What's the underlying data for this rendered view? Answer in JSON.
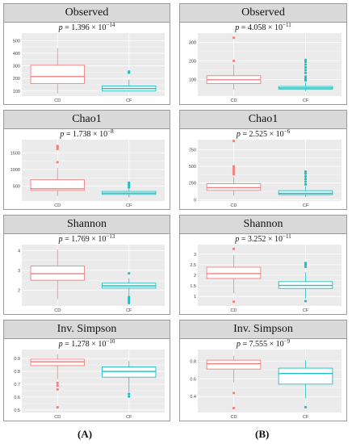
{
  "chart_data": [
    {
      "type": "box",
      "group": "A",
      "title": "Observed",
      "pvalue": {
        "base": "p = 1.396 × 10",
        "exp": "−14"
      },
      "ylim": [
        60,
        560
      ],
      "yticks": [
        100,
        200,
        300,
        400,
        500
      ],
      "categories": [
        "CD",
        "CF"
      ],
      "series": [
        {
          "name": "CD",
          "color": "#f07f7f",
          "min": 80,
          "q1": 160,
          "median": 215,
          "q3": 305,
          "max": 440,
          "outliers": []
        },
        {
          "name": "CF",
          "color": "#1fbfc4",
          "min": 95,
          "q1": 100,
          "median": 120,
          "q3": 140,
          "max": 190,
          "outliers": [
            245,
            255
          ]
        }
      ]
    },
    {
      "type": "box",
      "group": "B",
      "title": "Observed",
      "pvalue": {
        "base": "p = 4.058 × 10",
        "exp": "−11"
      },
      "ylim": [
        10,
        350
      ],
      "yticks": [
        100,
        200,
        300
      ],
      "categories": [
        "CD",
        "CF"
      ],
      "series": [
        {
          "name": "CD",
          "color": "#f07f7f",
          "min": 45,
          "q1": 78,
          "median": 98,
          "q3": 120,
          "max": 180,
          "outliers": [
            200,
            325
          ]
        },
        {
          "name": "CF",
          "color": "#1fbfc4",
          "min": 35,
          "q1": 48,
          "median": 54,
          "q3": 62,
          "max": 85,
          "outliers": [
            95,
            105,
            115,
            135,
            150,
            165,
            180,
            195,
            205
          ]
        }
      ]
    },
    {
      "type": "box",
      "group": "A",
      "title": "Chao1",
      "pvalue": {
        "base": "p = 1.738 × 10",
        "exp": "−8"
      },
      "ylim": [
        50,
        1900
      ],
      "yticks": [
        500,
        1000,
        1500
      ],
      "categories": [
        "CD",
        "CF"
      ],
      "series": [
        {
          "name": "CD",
          "color": "#f07f7f",
          "min": 200,
          "q1": 370,
          "median": 420,
          "q3": 690,
          "max": 1050,
          "outliers": [
            1220,
            1620,
            1680,
            1710
          ]
        },
        {
          "name": "CF",
          "color": "#1fbfc4",
          "min": 160,
          "q1": 250,
          "median": 290,
          "q3": 340,
          "max": 420,
          "outliers": [
            460,
            520,
            560,
            600
          ]
        }
      ]
    },
    {
      "type": "box",
      "group": "B",
      "title": "Chao1",
      "pvalue": {
        "base": "p = 2.525 × 10",
        "exp": "−6"
      },
      "ylim": [
        -20,
        900
      ],
      "yticks": [
        0,
        250,
        500,
        750
      ],
      "categories": [
        "CD",
        "CF"
      ],
      "series": [
        {
          "name": "CD",
          "color": "#f07f7f",
          "min": 60,
          "q1": 140,
          "median": 180,
          "q3": 240,
          "max": 340,
          "outliers": [
            380,
            410,
            440,
            470,
            500,
            880
          ]
        },
        {
          "name": "CF",
          "color": "#1fbfc4",
          "min": 40,
          "q1": 75,
          "median": 95,
          "q3": 135,
          "max": 200,
          "outliers": [
            230,
            270,
            310,
            350,
            390,
            420
          ]
        }
      ]
    },
    {
      "type": "box",
      "group": "A",
      "title": "Shannon",
      "pvalue": {
        "base": "p = 1.769 × 10",
        "exp": "−13"
      },
      "ylim": [
        1.2,
        4.3
      ],
      "yticks": [
        2,
        3,
        4
      ],
      "categories": [
        "CD",
        "CF"
      ],
      "series": [
        {
          "name": "CD",
          "color": "#f07f7f",
          "min": 1.55,
          "q1": 2.5,
          "median": 2.83,
          "q3": 3.22,
          "max": 4.05,
          "outliers": []
        },
        {
          "name": "CF",
          "color": "#1fbfc4",
          "min": 1.7,
          "q1": 2.1,
          "median": 2.22,
          "q3": 2.35,
          "max": 2.6,
          "outliers": [
            1.35,
            1.45,
            1.55,
            1.65,
            2.85
          ]
        }
      ]
    },
    {
      "type": "box",
      "group": "B",
      "title": "Shannon",
      "pvalue": {
        "base": "p = 3.252 × 10",
        "exp": "−11"
      },
      "ylim": [
        0.55,
        3.45
      ],
      "yticks": [
        1.0,
        1.5,
        2.0,
        2.5,
        3.0
      ],
      "categories": [
        "CD",
        "CF"
      ],
      "series": [
        {
          "name": "CD",
          "color": "#f07f7f",
          "min": 1.15,
          "q1": 1.85,
          "median": 2.08,
          "q3": 2.38,
          "max": 2.95,
          "outliers": [
            0.75,
            3.25
          ]
        },
        {
          "name": "CF",
          "color": "#1fbfc4",
          "min": 0.9,
          "q1": 1.38,
          "median": 1.52,
          "q3": 1.7,
          "max": 2.15,
          "outliers": [
            0.78,
            2.4,
            2.5,
            2.58
          ]
        }
      ]
    },
    {
      "type": "box",
      "group": "A",
      "title": "Inv. Simpson",
      "pvalue": {
        "base": "p = 1.278 × 10",
        "exp": "−10"
      },
      "ylim": [
        0.48,
        0.97
      ],
      "yticks": [
        0.5,
        0.6,
        0.7,
        0.8,
        0.9
      ],
      "categories": [
        "CD",
        "CF"
      ],
      "series": [
        {
          "name": "CD",
          "color": "#f07f7f",
          "min": 0.74,
          "q1": 0.845,
          "median": 0.875,
          "q3": 0.895,
          "max": 0.935,
          "outliers": [
            0.52,
            0.66,
            0.69,
            0.71
          ]
        },
        {
          "name": "CF",
          "color": "#1fbfc4",
          "min": 0.64,
          "q1": 0.755,
          "median": 0.8,
          "q3": 0.835,
          "max": 0.88,
          "outliers": [
            0.605,
            0.625
          ]
        }
      ]
    },
    {
      "type": "box",
      "group": "B",
      "title": "Inv. Simpson",
      "pvalue": {
        "base": "p = 7.555 × 10",
        "exp": "−9"
      },
      "ylim": [
        0.22,
        0.93
      ],
      "yticks": [
        0.4,
        0.6,
        0.8
      ],
      "categories": [
        "CD",
        "CF"
      ],
      "series": [
        {
          "name": "CD",
          "color": "#f07f7f",
          "min": 0.56,
          "q1": 0.71,
          "median": 0.77,
          "q3": 0.81,
          "max": 0.86,
          "outliers": [
            0.27,
            0.44
          ]
        },
        {
          "name": "CF",
          "color": "#1fbfc4",
          "min": 0.38,
          "q1": 0.54,
          "median": 0.66,
          "q3": 0.72,
          "max": 0.81,
          "outliers": [
            0.28
          ]
        }
      ]
    }
  ],
  "footer": {
    "left": "(A)",
    "right": "(B)"
  }
}
